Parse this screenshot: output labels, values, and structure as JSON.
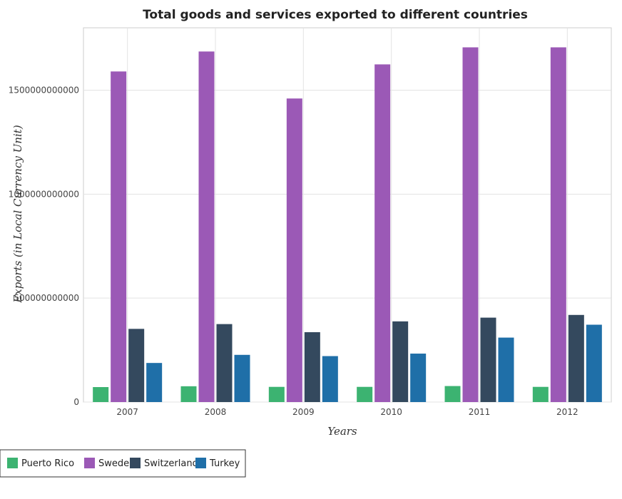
{
  "chart_data": {
    "type": "bar",
    "title": "Total goods and services exported to different countries",
    "xlabel": "Years",
    "ylabel": "Exports (in Local Currency Unit)",
    "categories": [
      "2007",
      "2008",
      "2009",
      "2010",
      "2011",
      "2012"
    ],
    "ylim": [
      0,
      1800000000000
    ],
    "yticks": [
      0,
      500000000000,
      1000000000000,
      1500000000000
    ],
    "ytick_labels": [
      "0",
      "500000000000",
      "1000000000000",
      "1500000000000"
    ],
    "grid": true,
    "legend_position": "bottom-left",
    "series": [
      {
        "name": "Puerto Rico",
        "color": "#3cb371",
        "values": [
          72000000000,
          76000000000,
          73000000000,
          73000000000,
          77000000000,
          73000000000
        ]
      },
      {
        "name": "Sweden",
        "color": "#9b59b6",
        "values": [
          1590000000000,
          1686000000000,
          1460000000000,
          1624000000000,
          1706000000000,
          1706000000000
        ]
      },
      {
        "name": "Switzerland",
        "color": "#34495e",
        "values": [
          352000000000,
          375000000000,
          336000000000,
          388000000000,
          406000000000,
          419000000000
        ]
      },
      {
        "name": "Turkey",
        "color": "#1f6fa8",
        "values": [
          188000000000,
          227000000000,
          221000000000,
          233000000000,
          310000000000,
          372000000000
        ]
      }
    ]
  }
}
